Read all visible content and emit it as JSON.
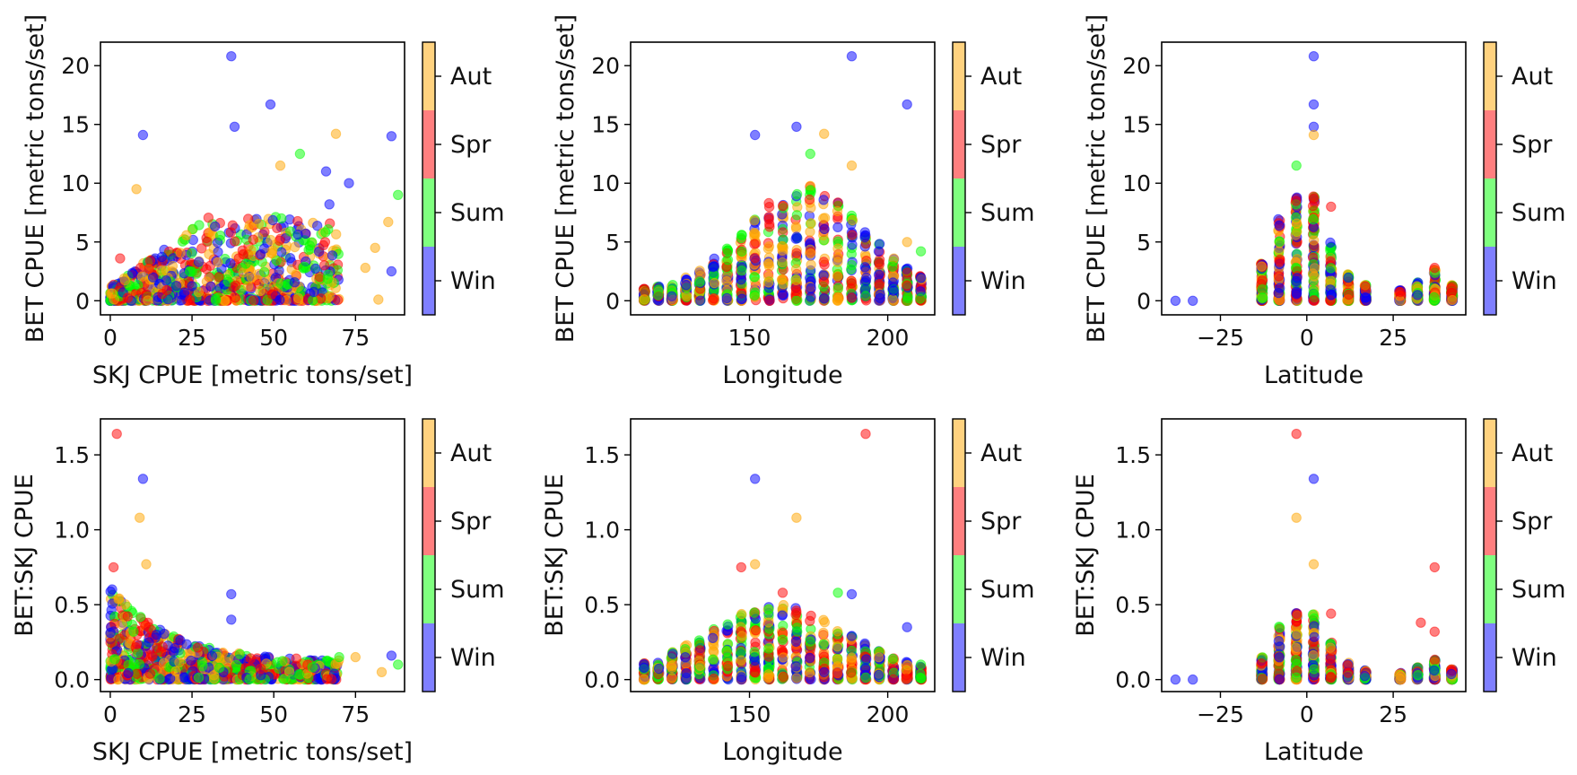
{
  "season_colors": {
    "Win": "#0000ff",
    "Sum": "#00ff00",
    "Spr": "#ff0000",
    "Aut": "#ffa500"
  },
  "colorbar_labels": [
    "Win",
    "Sum",
    "Spr",
    "Aut"
  ],
  "chart_data": [
    {
      "id": "p11",
      "type": "scatter",
      "xlabel": "SKJ CPUE [metric tons/set]",
      "ylabel": "BET CPUE [metric tons/set]",
      "xlim": [
        -3,
        90
      ],
      "ylim": [
        -1.2,
        22
      ],
      "xticks": [
        0,
        25,
        50,
        75
      ],
      "yticks": [
        0,
        5,
        10,
        15,
        20
      ],
      "highlights": [
        [
          37,
          20.8,
          "Win"
        ],
        [
          49,
          16.7,
          "Win"
        ],
        [
          10,
          14.1,
          "Win"
        ],
        [
          38,
          14.8,
          "Win"
        ],
        [
          86,
          14.0,
          "Win"
        ],
        [
          69,
          14.2,
          "Aut"
        ],
        [
          58,
          12.5,
          "Sum"
        ],
        [
          52,
          11.5,
          "Aut"
        ],
        [
          66,
          11.0,
          "Win"
        ],
        [
          73,
          10.0,
          "Win"
        ],
        [
          88,
          9.0,
          "Sum"
        ],
        [
          8,
          9.5,
          "Aut"
        ],
        [
          85,
          6.7,
          "Aut"
        ],
        [
          81,
          4.5,
          "Aut"
        ],
        [
          86,
          2.5,
          "Win"
        ],
        [
          82,
          0.1,
          "Aut"
        ],
        [
          78,
          2.8,
          "Aut"
        ],
        [
          67,
          8.2,
          "Win"
        ],
        [
          3,
          3.6,
          "Spr"
        ]
      ],
      "cloud": [
        {
          "x": [
            0,
            70
          ],
          "y": [
            0,
            7
          ],
          "shape": "bet_skj",
          "n": 900
        }
      ]
    },
    {
      "id": "p12",
      "type": "scatter",
      "xlabel": "Longitude",
      "ylabel": "BET CPUE [metric tons/set]",
      "xlim": [
        107,
        217
      ],
      "ylim": [
        -1.2,
        22
      ],
      "xticks": [
        150,
        200
      ],
      "yticks": [
        0,
        5,
        10,
        15,
        20
      ],
      "highlights": [
        [
          187,
          20.8,
          "Win"
        ],
        [
          207,
          16.7,
          "Win"
        ],
        [
          152,
          14.1,
          "Win"
        ],
        [
          167,
          14.8,
          "Win"
        ],
        [
          177,
          14.2,
          "Aut"
        ],
        [
          172,
          12.5,
          "Sum"
        ],
        [
          187,
          11.5,
          "Aut"
        ],
        [
          207,
          5.0,
          "Aut"
        ],
        [
          212,
          4.2,
          "Sum"
        ]
      ],
      "cloud": [
        {
          "x": [
            112,
            212
          ],
          "y": [
            0,
            10
          ],
          "shape": "columns_hump",
          "center": 170,
          "width": 30,
          "step": 5,
          "n": 900
        }
      ]
    },
    {
      "id": "p13",
      "type": "scatter",
      "xlabel": "Latitude",
      "ylabel": "BET CPUE [metric tons/set]",
      "xlim": [
        -42,
        46
      ],
      "ylim": [
        -1.2,
        22
      ],
      "xticks": [
        -25,
        0,
        25
      ],
      "yticks": [
        0,
        5,
        10,
        15,
        20
      ],
      "highlights": [
        [
          2,
          20.8,
          "Win"
        ],
        [
          2,
          16.7,
          "Win"
        ],
        [
          2,
          14.8,
          "Win"
        ],
        [
          2,
          14.1,
          "Aut"
        ],
        [
          -3,
          11.5,
          "Sum"
        ],
        [
          -38,
          0,
          "Win"
        ],
        [
          -33,
          0,
          "Win"
        ],
        [
          37,
          2.8,
          "Spr"
        ],
        [
          7,
          8.0,
          "Spr"
        ]
      ],
      "cloud": [
        {
          "x": [
            -13,
            43
          ],
          "y": [
            0,
            9
          ],
          "shape": "columns_lat",
          "n": 900
        }
      ]
    },
    {
      "id": "p21",
      "type": "scatter",
      "xlabel": "SKJ CPUE [metric tons/set]",
      "ylabel": "BET:SKJ CPUE",
      "xlim": [
        -3,
        90
      ],
      "ylim": [
        -0.08,
        1.74
      ],
      "xticks": [
        0,
        25,
        50,
        75
      ],
      "yticks": [
        0.0,
        0.5,
        1.0,
        1.5
      ],
      "highlights": [
        [
          2,
          1.64,
          "Spr"
        ],
        [
          10,
          1.34,
          "Win"
        ],
        [
          9,
          1.08,
          "Aut"
        ],
        [
          11,
          0.77,
          "Aut"
        ],
        [
          1,
          0.75,
          "Spr"
        ],
        [
          37,
          0.57,
          "Win"
        ],
        [
          37,
          0.4,
          "Win"
        ],
        [
          86,
          0.16,
          "Win"
        ],
        [
          88,
          0.1,
          "Sum"
        ],
        [
          83,
          0.05,
          "Aut"
        ],
        [
          75,
          0.15,
          "Aut"
        ],
        [
          70,
          0.15,
          "Sum"
        ]
      ],
      "cloud": [
        {
          "x": [
            0,
            70
          ],
          "y": [
            0,
            0.6
          ],
          "shape": "ratio_decay",
          "n": 900
        }
      ]
    },
    {
      "id": "p22",
      "type": "scatter",
      "xlabel": "Longitude",
      "ylabel": "BET:SKJ CPUE",
      "xlim": [
        107,
        217
      ],
      "ylim": [
        -0.08,
        1.74
      ],
      "xticks": [
        150,
        200
      ],
      "yticks": [
        0.0,
        0.5,
        1.0,
        1.5
      ],
      "highlights": [
        [
          192,
          1.64,
          "Spr"
        ],
        [
          152,
          1.34,
          "Win"
        ],
        [
          167,
          1.08,
          "Aut"
        ],
        [
          152,
          0.77,
          "Aut"
        ],
        [
          147,
          0.75,
          "Spr"
        ],
        [
          162,
          0.58,
          "Spr"
        ],
        [
          182,
          0.58,
          "Sum"
        ],
        [
          187,
          0.57,
          "Win"
        ],
        [
          207,
          0.35,
          "Win"
        ],
        [
          212,
          0.1,
          "Sum"
        ]
      ],
      "cloud": [
        {
          "x": [
            112,
            212
          ],
          "y": [
            0,
            0.5
          ],
          "shape": "columns_hump",
          "center": 160,
          "width": 35,
          "step": 5,
          "n": 900
        }
      ]
    },
    {
      "id": "p23",
      "type": "scatter",
      "xlabel": "Latitude",
      "ylabel": "BET:SKJ CPUE",
      "xlim": [
        -42,
        46
      ],
      "ylim": [
        -0.08,
        1.74
      ],
      "xticks": [
        -25,
        0,
        25
      ],
      "yticks": [
        0.0,
        0.5,
        1.0,
        1.5
      ],
      "highlights": [
        [
          -3,
          1.64,
          "Spr"
        ],
        [
          2,
          1.34,
          "Win"
        ],
        [
          -3,
          1.08,
          "Aut"
        ],
        [
          2,
          0.77,
          "Aut"
        ],
        [
          37,
          0.75,
          "Spr"
        ],
        [
          33,
          0.38,
          "Spr"
        ],
        [
          37,
          0.32,
          "Spr"
        ],
        [
          7,
          0.44,
          "Spr"
        ],
        [
          -38,
          0,
          "Win"
        ],
        [
          -33,
          0,
          "Win"
        ]
      ],
      "cloud": [
        {
          "x": [
            -13,
            43
          ],
          "y": [
            0,
            0.45
          ],
          "shape": "columns_lat",
          "n": 900
        }
      ]
    }
  ]
}
